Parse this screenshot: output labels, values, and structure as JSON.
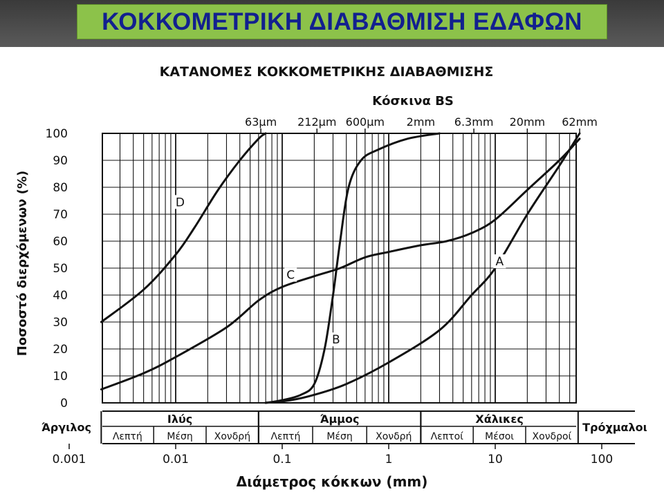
{
  "slide": {
    "title": "ΚΟΚΚΟΜΕΤΡΙΚΗ ΔΙΑΒΑΘΜΙΣΗ ΕΔΑΦΩΝ"
  },
  "colors": {
    "title_bar": "#4a4a4a",
    "title_box": "#8cc24a",
    "title_text": "#12208f",
    "ink": "#111111"
  },
  "chart_data": {
    "type": "line",
    "title": "ΚΑΤΑΝΟΜΕΣ ΚΟΚΚΟΜΕΤΡΙΚΗΣ ΔΙΑΒΑΘΜΙΣΗΣ",
    "xlabel": "Διάμετρος κόκκων (mm)",
    "ylabel": "Ποσοστό διερχόμενων (%)",
    "x_scale": "log",
    "xlim": [
      0.002,
      62
    ],
    "ylim": [
      0,
      100
    ],
    "grid": true,
    "x_tick_labels": [
      "0.001",
      "0.01",
      "0.1",
      "1",
      "10",
      "100"
    ],
    "x_ticks": [
      0.001,
      0.01,
      0.1,
      1,
      10,
      100
    ],
    "y_ticks": [
      0,
      10,
      20,
      30,
      40,
      50,
      60,
      70,
      80,
      90,
      100
    ],
    "sieves_title": "Κόσκινα BS",
    "sieves": [
      {
        "label": "63μm",
        "size": 0.063
      },
      {
        "label": "212μm",
        "size": 0.212
      },
      {
        "label": "600μm",
        "size": 0.6
      },
      {
        "label": "2mm",
        "size": 2
      },
      {
        "label": "6.3mm",
        "size": 6.3
      },
      {
        "label": "20mm",
        "size": 20
      },
      {
        "label": "62mm",
        "size": 62
      }
    ],
    "series": [
      {
        "name": "A",
        "label_at": [
          11,
          51
        ],
        "points": [
          [
            0.07,
            0
          ],
          [
            0.12,
            1
          ],
          [
            0.2,
            3
          ],
          [
            0.4,
            7
          ],
          [
            1,
            15
          ],
          [
            3,
            27
          ],
          [
            6,
            40
          ],
          [
            10,
            50
          ],
          [
            20,
            70
          ],
          [
            40,
            88
          ],
          [
            62,
            100
          ]
        ]
      },
      {
        "name": "B",
        "label_at": [
          0.32,
          22
        ],
        "points": [
          [
            0.07,
            0
          ],
          [
            0.1,
            1
          ],
          [
            0.15,
            3
          ],
          [
            0.2,
            7
          ],
          [
            0.25,
            20
          ],
          [
            0.3,
            40
          ],
          [
            0.35,
            60
          ],
          [
            0.42,
            80
          ],
          [
            0.55,
            90
          ],
          [
            0.8,
            94
          ],
          [
            1.5,
            98
          ],
          [
            3,
            100
          ]
        ]
      },
      {
        "name": "C",
        "label_at": [
          0.12,
          46
        ],
        "points": [
          [
            0.002,
            5
          ],
          [
            0.005,
            11
          ],
          [
            0.01,
            17
          ],
          [
            0.03,
            28
          ],
          [
            0.06,
            38
          ],
          [
            0.1,
            43
          ],
          [
            0.2,
            47
          ],
          [
            0.35,
            50
          ],
          [
            0.6,
            54
          ],
          [
            1,
            56
          ],
          [
            2,
            58.5
          ],
          [
            3.5,
            60
          ],
          [
            6,
            63
          ],
          [
            10,
            68
          ],
          [
            20,
            79
          ],
          [
            40,
            90
          ],
          [
            62,
            98
          ]
        ]
      },
      {
        "name": "D",
        "label_at": [
          0.011,
          73
        ],
        "points": [
          [
            0.002,
            30
          ],
          [
            0.005,
            42
          ],
          [
            0.01,
            55
          ],
          [
            0.015,
            65
          ],
          [
            0.025,
            79
          ],
          [
            0.04,
            90
          ],
          [
            0.06,
            98
          ],
          [
            0.07,
            100
          ]
        ]
      }
    ],
    "classification": [
      {
        "name": "Άργιλος",
        "parts": []
      },
      {
        "name": "Ιλύς",
        "parts": [
          "Λεπτή",
          "Μέση",
          "Χονδρή"
        ]
      },
      {
        "name": "Άμμος",
        "parts": [
          "Λεπτή",
          "Μέση",
          "Χονδρή"
        ]
      },
      {
        "name": "Χάλικες",
        "parts": [
          "Λεπτοί",
          "Μέσοι",
          "Χονδροί"
        ]
      },
      {
        "name": "Τρόχμαλοι",
        "parts": []
      }
    ]
  }
}
